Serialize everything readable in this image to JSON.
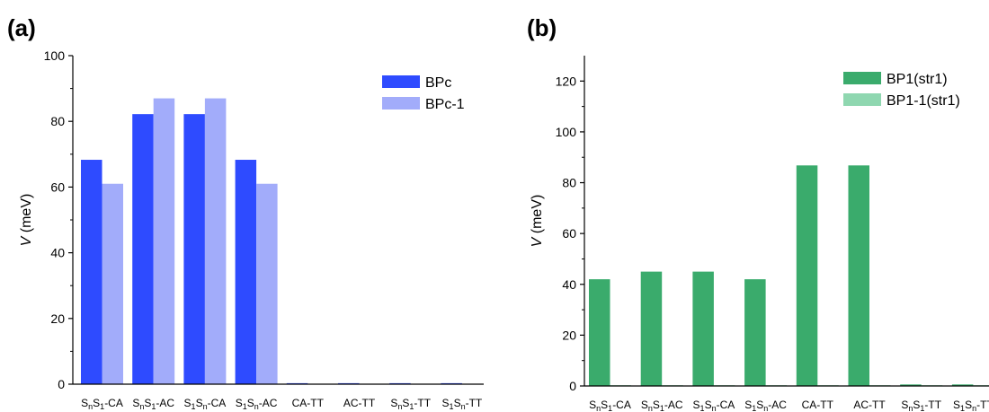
{
  "chart_data": [
    {
      "panel": "(a)",
      "type": "bar",
      "ylabel": {
        "var": "V",
        "unit": " (meV)"
      },
      "ylim": [
        0,
        100
      ],
      "yticks": [
        "0",
        "20",
        "40",
        "60",
        "80",
        "100"
      ],
      "ytick_values": [
        0,
        20,
        40,
        60,
        80,
        100
      ],
      "minor_ticks": true,
      "grid": false,
      "legend": "top-right",
      "categories": [
        [
          [
            "S",
            ""
          ],
          [
            "n",
            "sub"
          ],
          [
            "S",
            ""
          ],
          [
            "1",
            "sub"
          ],
          [
            "-CA",
            ""
          ]
        ],
        [
          [
            "S",
            ""
          ],
          [
            "n",
            "sub"
          ],
          [
            "S",
            ""
          ],
          [
            "1",
            "sub"
          ],
          [
            "-AC",
            ""
          ]
        ],
        [
          [
            "S",
            ""
          ],
          [
            "1",
            "sub"
          ],
          [
            "S",
            ""
          ],
          [
            "n",
            "sub"
          ],
          [
            "-CA",
            ""
          ]
        ],
        [
          [
            "S",
            ""
          ],
          [
            "1",
            "sub"
          ],
          [
            "S",
            ""
          ],
          [
            "n",
            "sub"
          ],
          [
            "-AC",
            ""
          ]
        ],
        [
          [
            "CA-TT",
            ""
          ]
        ],
        [
          [
            "AC-TT",
            ""
          ]
        ],
        [
          [
            "S",
            ""
          ],
          [
            "n",
            "sub"
          ],
          [
            "S",
            ""
          ],
          [
            "1",
            "sub"
          ],
          [
            "-TT",
            ""
          ]
        ],
        [
          [
            "S",
            ""
          ],
          [
            "1",
            "sub"
          ],
          [
            "S",
            ""
          ],
          [
            "n",
            "sub"
          ],
          [
            "-TT",
            ""
          ]
        ]
      ],
      "series": [
        {
          "name": "BPc",
          "color": "#2e4bff",
          "values": [
            68.3,
            82.2,
            82.2,
            68.3,
            0.3,
            0.3,
            0.3,
            0.3
          ]
        },
        {
          "name": "BPc-1",
          "color": "#a2acfa",
          "values": [
            61.0,
            87.0,
            87.0,
            61.0,
            0.1,
            0.1,
            0.1,
            0.1
          ]
        }
      ]
    },
    {
      "panel": "(b)",
      "type": "bar",
      "ylabel": {
        "var": "V",
        "unit": " (meV)"
      },
      "ylim": [
        0,
        130
      ],
      "yticks": [
        "0",
        "20",
        "40",
        "60",
        "80",
        "100",
        "120"
      ],
      "ytick_values": [
        0,
        20,
        40,
        60,
        80,
        100,
        120
      ],
      "minor_ticks": true,
      "grid": false,
      "legend": "top-right",
      "categories": [
        [
          [
            "S",
            ""
          ],
          [
            "n",
            "sub"
          ],
          [
            "S",
            ""
          ],
          [
            "1",
            "sub"
          ],
          [
            "-CA",
            ""
          ]
        ],
        [
          [
            "S",
            ""
          ],
          [
            "n",
            "sub"
          ],
          [
            "S",
            ""
          ],
          [
            "1",
            "sub"
          ],
          [
            "-AC",
            ""
          ]
        ],
        [
          [
            "S",
            ""
          ],
          [
            "1",
            "sub"
          ],
          [
            "S",
            ""
          ],
          [
            "n",
            "sub"
          ],
          [
            "-CA",
            ""
          ]
        ],
        [
          [
            "S",
            ""
          ],
          [
            "1",
            "sub"
          ],
          [
            "S",
            ""
          ],
          [
            "n",
            "sub"
          ],
          [
            "-AC",
            ""
          ]
        ],
        [
          [
            "CA-TT",
            ""
          ]
        ],
        [
          [
            "AC-TT",
            ""
          ]
        ],
        [
          [
            "S",
            ""
          ],
          [
            "n",
            "sub"
          ],
          [
            "S",
            ""
          ],
          [
            "1",
            "sub"
          ],
          [
            "-TT",
            ""
          ]
        ],
        [
          [
            "S",
            ""
          ],
          [
            "1",
            "sub"
          ],
          [
            "S",
            ""
          ],
          [
            "n",
            "sub"
          ],
          [
            "-TT",
            ""
          ]
        ]
      ],
      "series": [
        {
          "name": "BP1(str1)",
          "color": "#3aab6c",
          "values": [
            42.0,
            45.0,
            45.0,
            42.0,
            86.8,
            86.8,
            0.6,
            0.6
          ]
        },
        {
          "name": "BP1-1(str1)",
          "color": "#8fd7b0",
          "values": [
            0.3,
            0.3,
            0.3,
            0.3,
            0.3,
            0.3,
            0.3,
            0.3
          ]
        }
      ]
    }
  ]
}
